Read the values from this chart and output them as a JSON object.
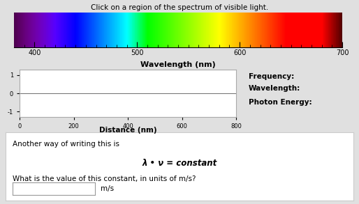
{
  "title": "Click on a region of the spectrum of visible light.",
  "spectrum_xlabel": "Wavelength (nm)",
  "wave_plot_xlabel": "Distance (nm)",
  "right_labels": [
    "Frequency:",
    "Wavelength:",
    "Photon Energy:"
  ],
  "bottom_text_1": "Another way of writing this is",
  "bottom_formula": "λ • ν = constant",
  "bottom_question": "What is the value of this constant, in units of m/s?",
  "bottom_unit": "m/s",
  "bg_color": "#e0e0e0",
  "panel_bg": "#e0e0e0",
  "bottom_box_bg": "#ffffff",
  "spectrum_xticks": [
    400,
    500,
    600,
    700
  ],
  "spectrum_minor_step": 10,
  "wave_xticks": [
    0,
    200,
    400,
    600,
    800
  ],
  "wave_yticks": [
    -1,
    0,
    1
  ]
}
